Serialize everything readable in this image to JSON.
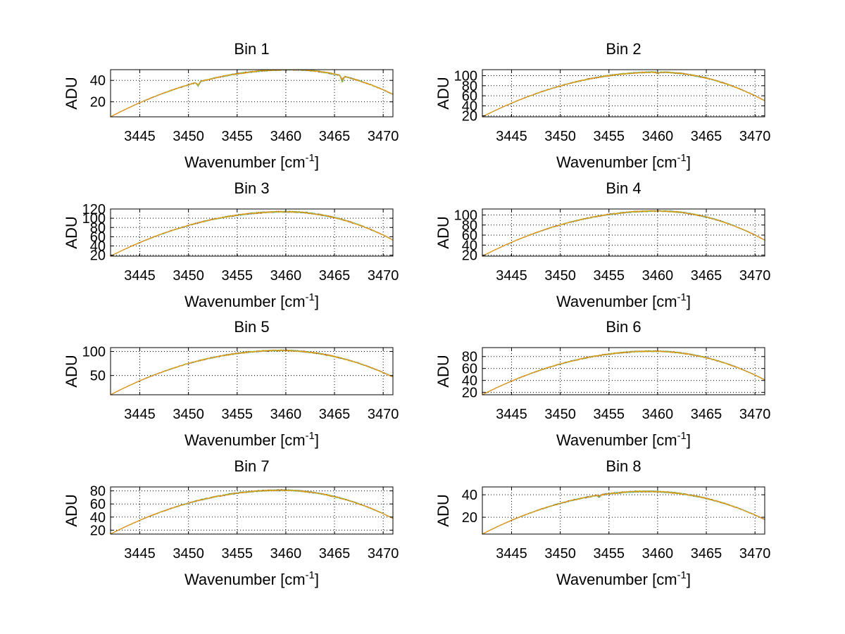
{
  "chart_data": [
    {
      "type": "line",
      "title": "Bin 1",
      "xlabel": "Wavenumber [cm",
      "xlabel_sup": "-1",
      "xlabel_end": "]",
      "ylabel": "ADU",
      "xlim": [
        3442,
        3471
      ],
      "ylim": [
        6,
        50
      ],
      "xticks": [
        3445,
        3450,
        3455,
        3460,
        3465,
        3470
      ],
      "yticks": [
        20,
        40
      ],
      "grid": true,
      "peak": 3460.5,
      "start_value": 6,
      "peak_value": 50,
      "end_value": 27,
      "noise": 0.6,
      "dips": [
        [
          3451,
          4
        ],
        [
          3465.8,
          6
        ]
      ]
    },
    {
      "type": "line",
      "title": "Bin 2",
      "xlabel": "Wavenumber [cm",
      "xlabel_sup": "-1",
      "xlabel_end": "]",
      "ylabel": "ADU",
      "xlim": [
        3442,
        3471
      ],
      "ylim": [
        18,
        112
      ],
      "xticks": [
        3445,
        3450,
        3455,
        3460,
        3465,
        3470
      ],
      "yticks": [
        20,
        40,
        60,
        80,
        100
      ],
      "grid": true,
      "peak": 3460,
      "start_value": 18,
      "peak_value": 107,
      "end_value": 50,
      "noise": 1.2,
      "dips": [
        [
          3460,
          3
        ]
      ]
    },
    {
      "type": "line",
      "title": "Bin 3",
      "xlabel": "Wavenumber [cm",
      "xlabel_sup": "-1",
      "xlabel_end": "]",
      "ylabel": "ADU",
      "xlim": [
        3442,
        3471
      ],
      "ylim": [
        18,
        120
      ],
      "xticks": [
        3445,
        3450,
        3455,
        3460,
        3465,
        3470
      ],
      "yticks": [
        20,
        40,
        60,
        80,
        100,
        120
      ],
      "grid": true,
      "peak": 3460,
      "start_value": 18,
      "peak_value": 114,
      "end_value": 53,
      "noise": 1.4,
      "dips": []
    },
    {
      "type": "line",
      "title": "Bin 4",
      "xlabel": "Wavenumber [cm",
      "xlabel_sup": "-1",
      "xlabel_end": "]",
      "ylabel": "ADU",
      "xlim": [
        3442,
        3471
      ],
      "ylim": [
        18,
        112
      ],
      "xticks": [
        3445,
        3450,
        3455,
        3460,
        3465,
        3470
      ],
      "yticks": [
        20,
        40,
        60,
        80,
        100
      ],
      "grid": true,
      "peak": 3460,
      "start_value": 18,
      "peak_value": 108,
      "end_value": 50,
      "noise": 1.2,
      "dips": []
    },
    {
      "type": "line",
      "title": "Bin 5",
      "xlabel": "Wavenumber [cm",
      "xlabel_sup": "-1",
      "xlabel_end": "]",
      "ylabel": "ADU",
      "xlim": [
        3442,
        3471
      ],
      "ylim": [
        10,
        108
      ],
      "xticks": [
        3445,
        3450,
        3455,
        3460,
        3465,
        3470
      ],
      "yticks": [
        50,
        100
      ],
      "grid": true,
      "peak": 3459.5,
      "start_value": 10,
      "peak_value": 102,
      "end_value": 47,
      "noise": 1.3,
      "dips": []
    },
    {
      "type": "line",
      "title": "Bin 6",
      "xlabel": "Wavenumber [cm",
      "xlabel_sup": "-1",
      "xlabel_end": "]",
      "ylabel": "ADU",
      "xlim": [
        3442,
        3471
      ],
      "ylim": [
        16,
        95
      ],
      "xticks": [
        3445,
        3450,
        3455,
        3460,
        3465,
        3470
      ],
      "yticks": [
        20,
        40,
        60,
        80
      ],
      "grid": true,
      "peak": 3459.5,
      "start_value": 16,
      "peak_value": 89,
      "end_value": 41,
      "noise": 1.0,
      "dips": []
    },
    {
      "type": "line",
      "title": "Bin 7",
      "xlabel": "Wavenumber [cm",
      "xlabel_sup": "-1",
      "xlabel_end": "]",
      "ylabel": "ADU",
      "xlim": [
        3442,
        3471
      ],
      "ylim": [
        14,
        86
      ],
      "xticks": [
        3445,
        3450,
        3455,
        3460,
        3465,
        3470
      ],
      "yticks": [
        20,
        40,
        60,
        80
      ],
      "grid": true,
      "peak": 3459.5,
      "start_value": 14,
      "peak_value": 81,
      "end_value": 38,
      "noise": 1.0,
      "dips": []
    },
    {
      "type": "line",
      "title": "Bin 8",
      "xlabel": "Wavenumber [cm",
      "xlabel_sup": "-1",
      "xlabel_end": "]",
      "ylabel": "ADU",
      "xlim": [
        3442,
        3471
      ],
      "ylim": [
        5,
        47
      ],
      "xticks": [
        3445,
        3450,
        3455,
        3460,
        3465,
        3470
      ],
      "yticks": [
        20,
        40
      ],
      "grid": true,
      "peak": 3459,
      "start_value": 5,
      "peak_value": 43,
      "end_value": 18,
      "noise": 0.6,
      "dips": [
        [
          3454,
          2
        ]
      ]
    }
  ],
  "series_colors": [
    "#1f1f8f",
    "#8b1a1a",
    "#2e8b57",
    "#40e0d0",
    "#9acd32",
    "#ff8c00"
  ]
}
